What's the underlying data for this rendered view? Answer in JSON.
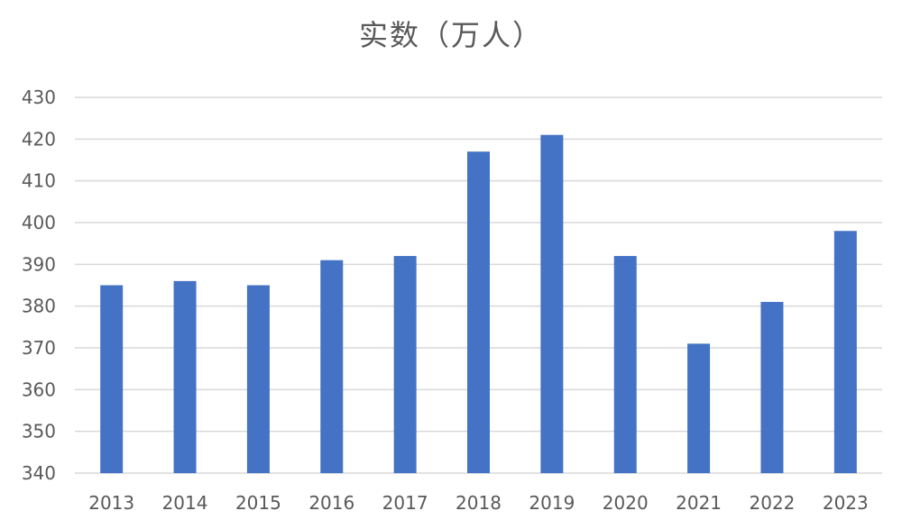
{
  "chart_data": {
    "type": "bar",
    "title": "实数（万人）",
    "categories": [
      "2013",
      "2014",
      "2015",
      "2016",
      "2017",
      "2018",
      "2019",
      "2020",
      "2021",
      "2022",
      "2023"
    ],
    "series": [
      {
        "values": [
          385,
          386,
          385,
          391,
          392,
          417,
          421,
          392,
          371,
          381,
          398
        ]
      }
    ],
    "ylim": [
      340,
      430
    ],
    "yticks": [
      340,
      350,
      360,
      370,
      380,
      390,
      400,
      410,
      420,
      430
    ],
    "grid": true,
    "bar_color": "#4472C4",
    "grid_color": "#D9D9D9",
    "text_color": "#595959"
  }
}
